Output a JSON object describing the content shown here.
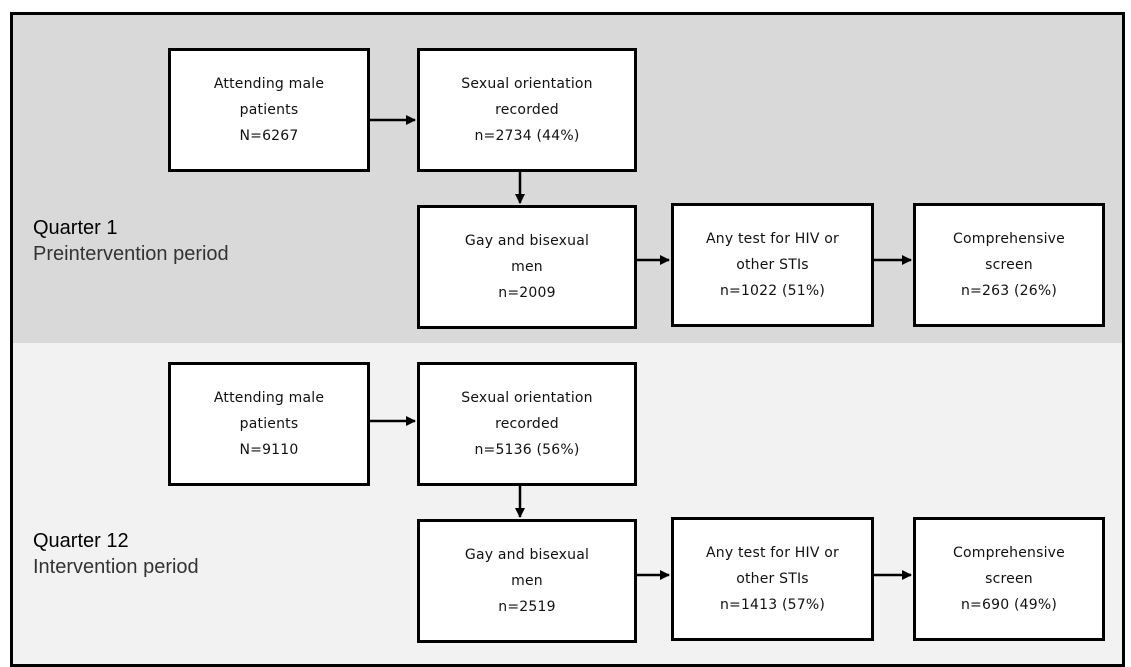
{
  "panels": [
    {
      "quarter_title": "Quarter 1",
      "period": "Preintervention period",
      "boxes": {
        "attending": [
          "Attending male",
          "patients",
          "N=6267"
        ],
        "orientation": [
          "Sexual orientation",
          "recorded",
          "n=2734 (44%)"
        ],
        "gbm": [
          "Gay and bisexual",
          "men",
          "n=2009"
        ],
        "any_test": [
          "Any test for HIV or",
          "other STIs",
          "n=1022 (51%)"
        ],
        "comprehensive": [
          "Comprehensive",
          "screen",
          "n=263 (26%)"
        ]
      }
    },
    {
      "quarter_title": "Quarter 12",
      "period": "Intervention period",
      "boxes": {
        "attending": [
          "Attending male",
          "patients",
          "N=9110"
        ],
        "orientation": [
          "Sexual orientation",
          "recorded",
          "n=5136 (56%)"
        ],
        "gbm": [
          "Gay and bisexual",
          "men",
          "n=2519"
        ],
        "any_test": [
          "Any test for HIV or",
          "other STIs",
          "n=1413 (57%)"
        ],
        "comprehensive": [
          "Comprehensive",
          "screen",
          "n=690 (49%)"
        ]
      }
    }
  ],
  "colors": {
    "panel_q1": "#d9d9d9",
    "panel_q12": "#f2f2f2",
    "border": "#000000"
  }
}
